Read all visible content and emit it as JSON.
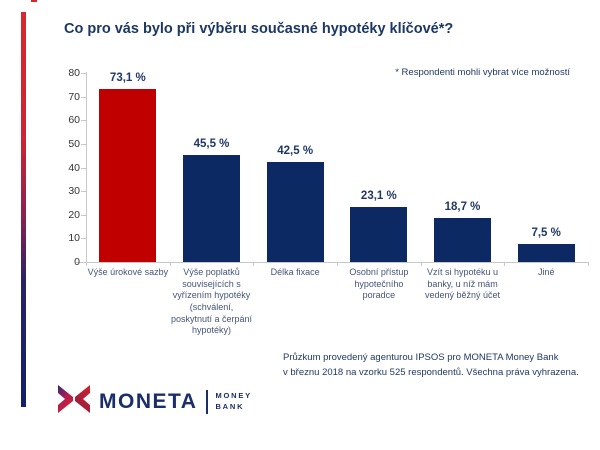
{
  "title": "Co pro vás bylo při výběru současné hypotéky klíčové*?",
  "note": "* Respondenti mohli vybrat více možností",
  "chart_data": {
    "type": "bar",
    "title": "Co pro vás bylo při výběru současné hypotéky klíčové*?",
    "categories": [
      "Výše úrokové sazby",
      "Výše poplatků souvisejících s vyřízením hypotéky (schválení, poskytnutí a čerpání hypotéky)",
      "Délka fixace",
      "Osobní přístup hypotečního poradce",
      "Vzít si hypotéku u banky, u níž mám vedený běžný účet",
      "Jiné"
    ],
    "values": [
      73.1,
      45.5,
      42.5,
      23.1,
      18.7,
      7.5
    ],
    "value_labels": [
      "73,1 %",
      "45,5 %",
      "42,5 %",
      "23,1 %",
      "18,7 %",
      "7,5 %"
    ],
    "bar_colors": [
      "#c00000",
      "#0d2963",
      "#0d2963",
      "#0d2963",
      "#0d2963",
      "#0d2963"
    ],
    "ylim": [
      0,
      80
    ],
    "yticks": [
      0,
      10,
      20,
      30,
      40,
      50,
      60,
      70,
      80
    ],
    "grid": false,
    "legend": "none"
  },
  "footer": {
    "line1": "Průzkum provedený agenturou IPSOS pro MONETA Money Bank",
    "line2": "v březnu 2018 na vzorku 525 respondentů. Všechna práva vyhrazena."
  },
  "logo": {
    "word": "MONETA",
    "sub_line1": "MONEY",
    "sub_line2": "BANK"
  },
  "colors": {
    "highlight_bar": "#c00000",
    "default_bar": "#0d2963",
    "title_text": "#1b3764",
    "category_text": "#44547a",
    "accent_top": "#d7282f",
    "accent_bottom": "#131f6b"
  }
}
